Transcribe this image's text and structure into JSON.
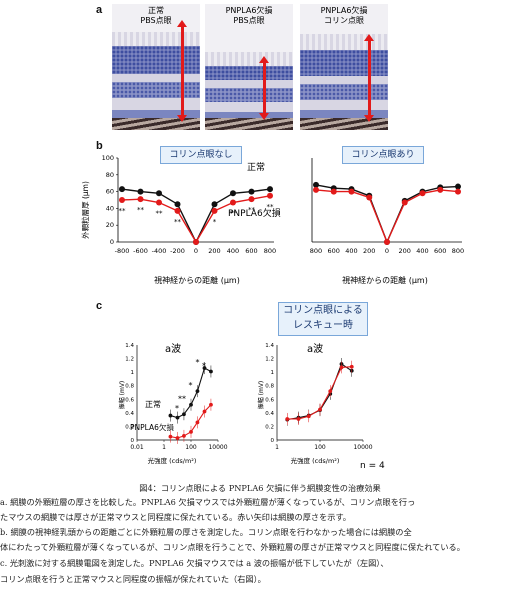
{
  "panel_a": {
    "label": "a",
    "images": [
      {
        "line1": "正常",
        "line2": "PBS点眼"
      },
      {
        "line1": "PNPLA6欠損",
        "line2": "PBS点眼"
      },
      {
        "line1": "PNPLA6欠損",
        "line2": "コリン点眼"
      }
    ],
    "arrow_color": "#e21a1a"
  },
  "panel_b": {
    "label": "b",
    "left_title": "コリン点眼なし",
    "right_title": "コリン点眼あり",
    "legend_normal": "正常",
    "legend_mutant": "PNPLA6欠損",
    "ylabel": "外顆粒層厚 (µm)",
    "xlabel": "視神経からの距離 (µm)",
    "left_xticks": [
      "-800",
      "-600",
      "-400",
      "-200",
      "0",
      "200",
      "400",
      "600",
      "800"
    ],
    "right_xticks": [
      "800",
      "600",
      "400",
      "200",
      "0",
      "200",
      "400",
      "600",
      "800"
    ],
    "yticks": [
      "0",
      "20",
      "40",
      "60",
      "80",
      "100"
    ],
    "significance": [
      "**",
      "**",
      "**",
      "**",
      "*",
      "**",
      "**",
      "**"
    ]
  },
  "panel_c": {
    "label": "c",
    "rescue_line1": "コリン点眼による",
    "rescue_line2": "レスキュー時",
    "left_title": "a波",
    "right_title": "a波",
    "ylabel": "振幅 (mV)",
    "xlabel": "光強度 (cds/m²)",
    "left_xticks": [
      "0.01",
      "1",
      "100",
      "10000"
    ],
    "right_xticks": [
      "1",
      "100",
      "10000"
    ],
    "yticks": [
      "0",
      "0.2",
      "0.4",
      "0.6",
      "0.8",
      "1",
      "1.2",
      "1.4"
    ],
    "legend_normal": "正常",
    "legend_mutant": "PNPLA6欠損",
    "significance": [
      "*",
      "**",
      "*",
      "*",
      "*"
    ],
    "n_label": "n = 4"
  },
  "caption": {
    "title": "図4：コリン点眼による PNPLA6 欠損に伴う網膜変性の治療効果",
    "lines": [
      "a. 網膜の外顆粒層の厚さを比較した。PNPLA6 欠損マウスでは外顆粒層が薄くなっているが、コリン点眼を行っ",
      "たマウスの網膜では厚さが正常マウスと同程度に保たれている。赤い矢印は網膜の厚さを示す。",
      "b. 網膜の視神経乳頭からの距離ごとに外顆粒層の厚さを測定した。コリン点眼を行わなかった場合には網膜の全",
      "体にわたって外顆粒層が薄くなっているが、コリン点眼を行うことで、外顆粒層の厚さが正常マウスと同程度に保たれている。",
      "c. 光刺激に対する網膜電図を測定した。PNPLA6 欠損マウスでは a 波の振幅が低下していたが（左図）、",
      "コリン点眼を行うと正常マウスと同程度の振幅が保たれていた（右図）。"
    ]
  },
  "colors": {
    "normal": "#111111",
    "mutant": "#e21a1a",
    "box_border": "#7aa7d9",
    "box_fill": "#e7f1fb"
  },
  "chart_data": [
    {
      "type": "line",
      "title": "コリン点眼なし",
      "xlabel": "視神経からの距離 (µm)",
      "ylabel": "外顆粒層厚 (µm)",
      "categories": [
        "-800",
        "-600",
        "-400",
        "-200",
        "0",
        "200",
        "400",
        "600",
        "800"
      ],
      "ylim": [
        0,
        100
      ],
      "series": [
        {
          "name": "正常",
          "values": [
            63,
            60,
            58,
            45,
            0,
            45,
            58,
            60,
            63
          ]
        },
        {
          "name": "PNPLA6欠損",
          "values": [
            50,
            51,
            47,
            37,
            0,
            37,
            47,
            51,
            55
          ]
        }
      ]
    },
    {
      "type": "line",
      "title": "コリン点眼あり",
      "xlabel": "視神経からの距離 (µm)",
      "ylabel": "外顆粒層厚 (µm)",
      "categories": [
        "800",
        "600",
        "400",
        "200",
        "0",
        "200",
        "400",
        "600",
        "800"
      ],
      "ylim": [
        0,
        100
      ],
      "series": [
        {
          "name": "正常",
          "values": [
            68,
            64,
            63,
            55,
            0,
            49,
            60,
            65,
            66
          ]
        },
        {
          "name": "PNPLA6欠損",
          "values": [
            62,
            60,
            60,
            53,
            0,
            47,
            58,
            62,
            60
          ]
        }
      ]
    },
    {
      "type": "line",
      "title": "a波",
      "xlabel": "光強度 (cds/m²)",
      "ylabel": "振幅 (mV)",
      "x_scale": "log",
      "xlim": [
        0.01,
        10000
      ],
      "ylim": [
        0,
        1.4
      ],
      "series": [
        {
          "name": "正常",
          "x": [
            3,
            10,
            30,
            100,
            300,
            1000,
            3000
          ],
          "y": [
            0.36,
            0.33,
            0.38,
            0.52,
            0.72,
            1.06,
            1.01
          ]
        },
        {
          "name": "PNPLA6欠損",
          "x": [
            3,
            10,
            30,
            100,
            300,
            1000,
            3000
          ],
          "y": [
            0.05,
            0.03,
            0.06,
            0.12,
            0.26,
            0.42,
            0.52
          ]
        }
      ]
    },
    {
      "type": "line",
      "title": "a波",
      "xlabel": "光強度 (cds/m²)",
      "ylabel": "振幅 (mV)",
      "x_scale": "log",
      "xlim": [
        1,
        10000
      ],
      "ylim": [
        0,
        1.4
      ],
      "series": [
        {
          "name": "正常",
          "x": [
            3,
            10,
            30,
            100,
            300,
            1000,
            3000
          ],
          "y": [
            0.3,
            0.33,
            0.36,
            0.44,
            0.68,
            1.12,
            1.02
          ]
        },
        {
          "name": "PNPLA6欠損",
          "x": [
            3,
            10,
            30,
            100,
            300,
            1000,
            3000
          ],
          "y": [
            0.31,
            0.31,
            0.35,
            0.45,
            0.72,
            1.07,
            1.08
          ]
        }
      ]
    }
  ]
}
